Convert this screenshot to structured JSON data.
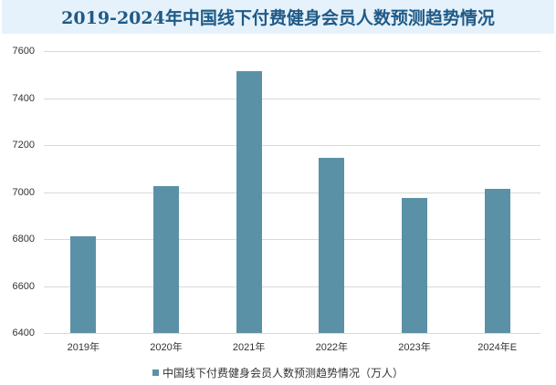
{
  "header": {
    "title": "2019-2024年中国线下付费健身会员人数预测趋势情况"
  },
  "legend": {
    "label": "中国线下付费健身会员人数预测趋势情况（万人）",
    "color": "#5b91a6"
  },
  "y_axis": {
    "ticks": [
      "7600",
      "7400",
      "7200",
      "7000",
      "6800",
      "6600",
      "6400"
    ]
  },
  "x_axis": {
    "ticks": [
      "2019年",
      "2020年",
      "2021年",
      "2022年",
      "2023年",
      "2024年E"
    ]
  },
  "colors": {
    "header_bg": "#e6f2fb",
    "title": "#1f5a87",
    "bar": "#5b91a6",
    "grid": "#d9d9d9"
  },
  "chart_data": {
    "type": "bar",
    "title": "2019-2024年中国线下付费健身会员人数预测趋势情况",
    "categories": [
      "2019年",
      "2020年",
      "2021年",
      "2022年",
      "2023年",
      "2024年E"
    ],
    "series": [
      {
        "name": "中国线下付费健身会员人数预测趋势情况（万人）",
        "values": [
          6812,
          7027,
          7513,
          7145,
          6974,
          7013
        ]
      }
    ],
    "xlabel": "",
    "ylabel": "",
    "ylim": [
      6400,
      7600
    ],
    "yticks": [
      6400,
      6600,
      6800,
      7000,
      7200,
      7400,
      7600
    ],
    "grid": true,
    "legend_position": "bottom"
  }
}
